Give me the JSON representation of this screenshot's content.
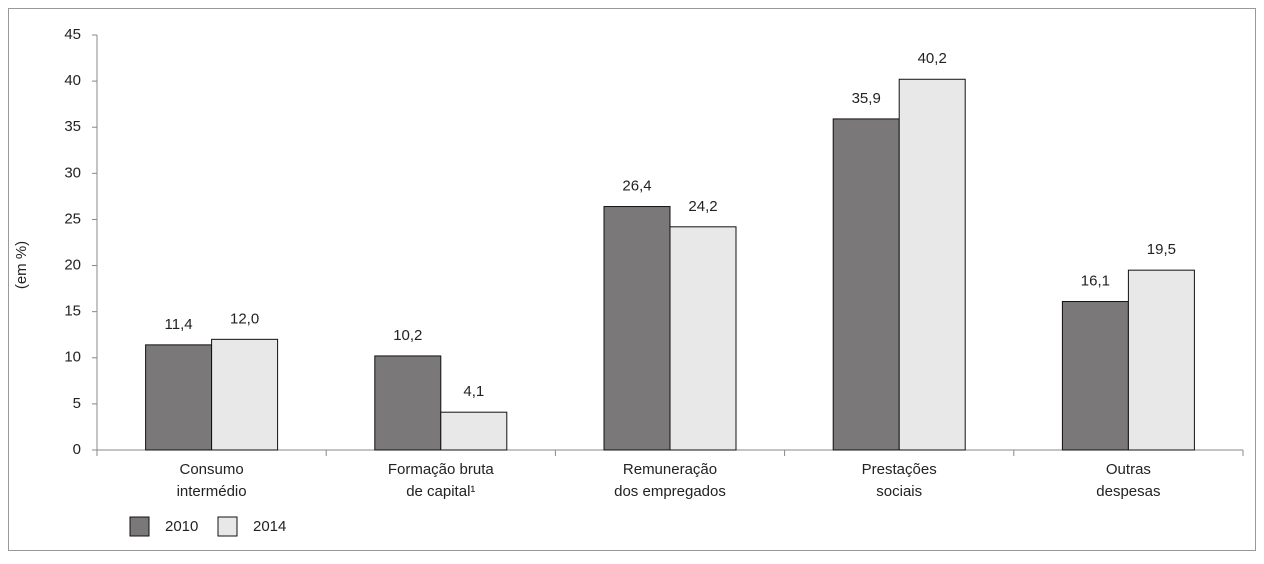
{
  "chart_data": {
    "type": "bar",
    "y_label": "(em %)",
    "categories": [
      [
        "Consumo",
        "intermédio"
      ],
      [
        "Formação bruta",
        "de capital¹"
      ],
      [
        "Remuneração",
        "dos empregados"
      ],
      [
        "Prestações",
        "sociais"
      ],
      [
        "Outras",
        "despesas"
      ]
    ],
    "series": [
      {
        "name": "2010",
        "color": "#7a7878",
        "values": [
          11.4,
          10.2,
          26.4,
          35.9,
          16.1
        ],
        "value_labels": [
          "11,4",
          "10,2",
          "26,4",
          "35,9",
          "16,1"
        ]
      },
      {
        "name": "2014",
        "color": "#e8e8e8",
        "values": [
          12.0,
          4.1,
          24.2,
          40.2,
          19.5
        ],
        "value_labels": [
          "12,0",
          "4,1",
          "24,2",
          "40,2",
          "19,5"
        ]
      }
    ],
    "ylim": [
      0,
      45
    ],
    "yticks": [
      0,
      5,
      10,
      15,
      20,
      25,
      30,
      35,
      40,
      45
    ],
    "grid": false,
    "legend": "bottom-left"
  }
}
